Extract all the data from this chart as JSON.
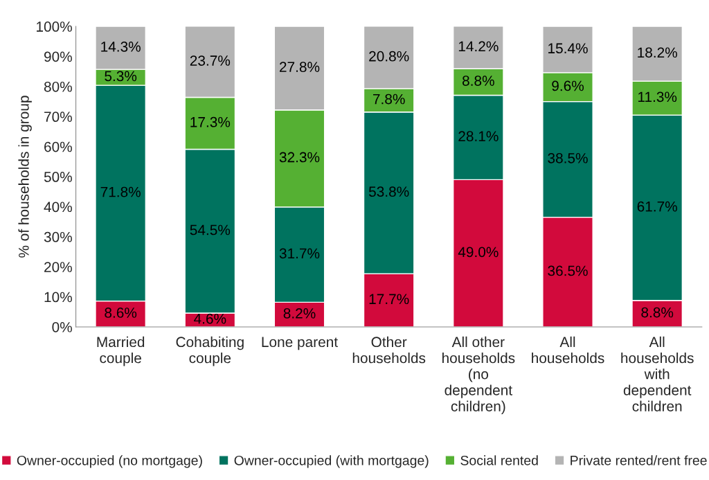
{
  "chart_data": {
    "type": "bar",
    "stacked": true,
    "ylabel": "% of households in group",
    "categories": [
      "Married\ncouple",
      "Cohabiting\ncouple",
      "Lone parent",
      "Other\nhouseholds",
      "All other\nhouseholds\n(no\ndependent\nchildren)",
      "All\nhouseholds",
      "All\nhouseholds\nwith\ndependent\nchildren"
    ],
    "series": [
      {
        "name": "Owner-occupied (no mortgage)",
        "color": "#d20a3c",
        "values": [
          8.6,
          4.6,
          8.2,
          17.7,
          49.0,
          36.5,
          8.8
        ],
        "value_labels": [
          "8.6%",
          "4.6%",
          "8.2%",
          "17.7%",
          "49.0%",
          "36.5%",
          "8.8%"
        ]
      },
      {
        "name": "Owner-occupied (with mortgage)",
        "color": "#00735f",
        "values": [
          71.8,
          54.5,
          31.7,
          53.8,
          28.1,
          38.5,
          61.7
        ],
        "value_labels": [
          "71.8%",
          "54.5%",
          "31.7%",
          "53.8%",
          "28.1%",
          "38.5%",
          "61.7%"
        ]
      },
      {
        "name": "Social rented",
        "color": "#55b033",
        "values": [
          5.3,
          17.3,
          32.3,
          7.8,
          8.8,
          9.6,
          11.3
        ],
        "value_labels": [
          "5.3%",
          "17.3%",
          "32.3%",
          "7.8%",
          "8.8%",
          "9.6%",
          "11.3%"
        ]
      },
      {
        "name": "Private rented/rent free",
        "color": "#b4b4b4",
        "values": [
          14.3,
          23.7,
          27.8,
          20.8,
          14.2,
          15.4,
          18.2
        ],
        "value_labels": [
          "14.3%",
          "23.7%",
          "27.8%",
          "20.8%",
          "14.2%",
          "15.4%",
          "18.2%"
        ]
      }
    ],
    "ylim": [
      0,
      100
    ],
    "yticks": [
      {
        "value": 0,
        "label": "0%"
      },
      {
        "value": 10,
        "label": "10%"
      },
      {
        "value": 20,
        "label": "20%"
      },
      {
        "value": 30,
        "label": "30%"
      },
      {
        "value": 40,
        "label": "40%"
      },
      {
        "value": 50,
        "label": "50%"
      },
      {
        "value": 60,
        "label": "60%"
      },
      {
        "value": 70,
        "label": "70%"
      },
      {
        "value": 80,
        "label": "80%"
      },
      {
        "value": 90,
        "label": "90%"
      },
      {
        "value": 100,
        "label": "100%"
      }
    ],
    "legend": "bottom",
    "grid": false
  }
}
